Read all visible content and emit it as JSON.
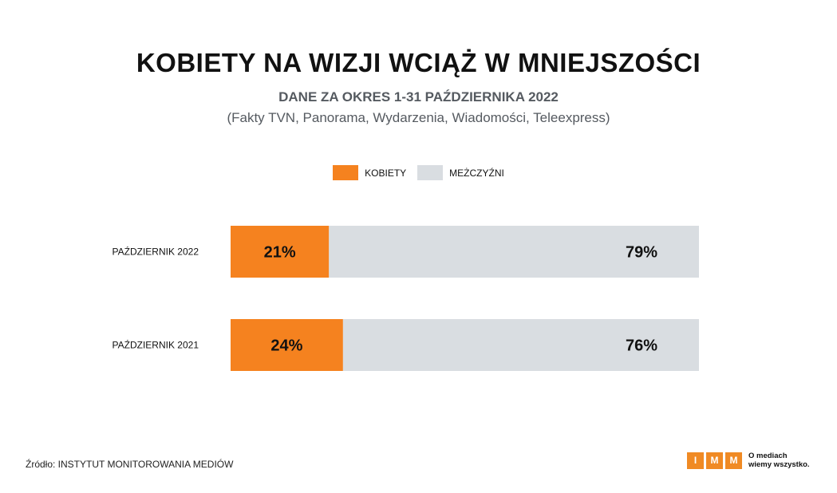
{
  "header": {
    "title": "KOBIETY NA WIZJI WCIĄŻ W MNIEJSZOŚCI",
    "subtitle": "DANE ZA OKRES 1-31 PAŹDZIERNIKA 2022",
    "note": "(Fakty TVN, Panorama, Wydarzenia, Wiadomości, Teleexpress)"
  },
  "colors": {
    "women": "#f5821f",
    "men": "#d9dde1",
    "text": "#111111"
  },
  "chart_data": {
    "type": "bar",
    "orientation": "horizontal",
    "stacked": true,
    "percent": true,
    "categories": [
      "PAŹDZIERNIK 2022",
      "PAŹDZIERNIK 2021"
    ],
    "series": [
      {
        "name": "KOBIETY",
        "values": [
          21,
          24
        ],
        "labels": [
          "21%",
          "24%"
        ]
      },
      {
        "name": "MEŻCZYŹNI",
        "values": [
          79,
          76
        ],
        "labels": [
          "79%",
          "76%"
        ]
      }
    ],
    "xlim": [
      0,
      100
    ],
    "legend_position": "top-center"
  },
  "footer": {
    "source": "Źródło: INSTYTUT MONITOROWANIA MEDIÓW",
    "logo_letters": [
      "I",
      "M",
      "M"
    ],
    "logo_tagline_1": "O mediach",
    "logo_tagline_2": "wiemy wszystko."
  }
}
